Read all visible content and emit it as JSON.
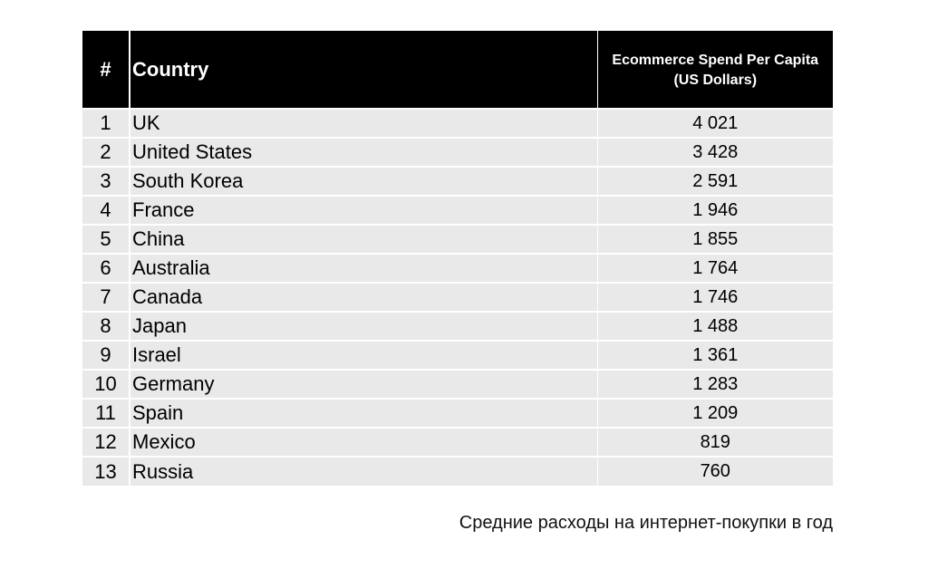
{
  "table": {
    "header": {
      "rank": "#",
      "country": "Country",
      "value_line1": "Ecommerce Spend Per Capita",
      "value_line2": "(US Dollars)"
    },
    "rows": [
      {
        "rank": "1",
        "country": "UK",
        "value": "4 021"
      },
      {
        "rank": "2",
        "country": "United States",
        "value": "3 428"
      },
      {
        "rank": "3",
        "country": "South Korea",
        "value": "2 591"
      },
      {
        "rank": "4",
        "country": "France",
        "value": "1 946"
      },
      {
        "rank": "5",
        "country": "China",
        "value": "1 855"
      },
      {
        "rank": "6",
        "country": "Australia",
        "value": "1 764"
      },
      {
        "rank": "7",
        "country": "Canada",
        "value": "1 746"
      },
      {
        "rank": "8",
        "country": "Japan",
        "value": "1 488"
      },
      {
        "rank": "9",
        "country": "Israel",
        "value": "1 361"
      },
      {
        "rank": "10",
        "country": "Germany",
        "value": "1 283"
      },
      {
        "rank": "11",
        "country": "Spain",
        "value": "1 209"
      },
      {
        "rank": "12",
        "country": "Mexico",
        "value": "819"
      },
      {
        "rank": "13",
        "country": "Russia",
        "value": "760"
      }
    ]
  },
  "caption": "Средние расходы на интернет-покупки в год",
  "colors": {
    "header_bg": "#000000",
    "header_text": "#ffffff",
    "row_bg": "#e9e9e9"
  }
}
